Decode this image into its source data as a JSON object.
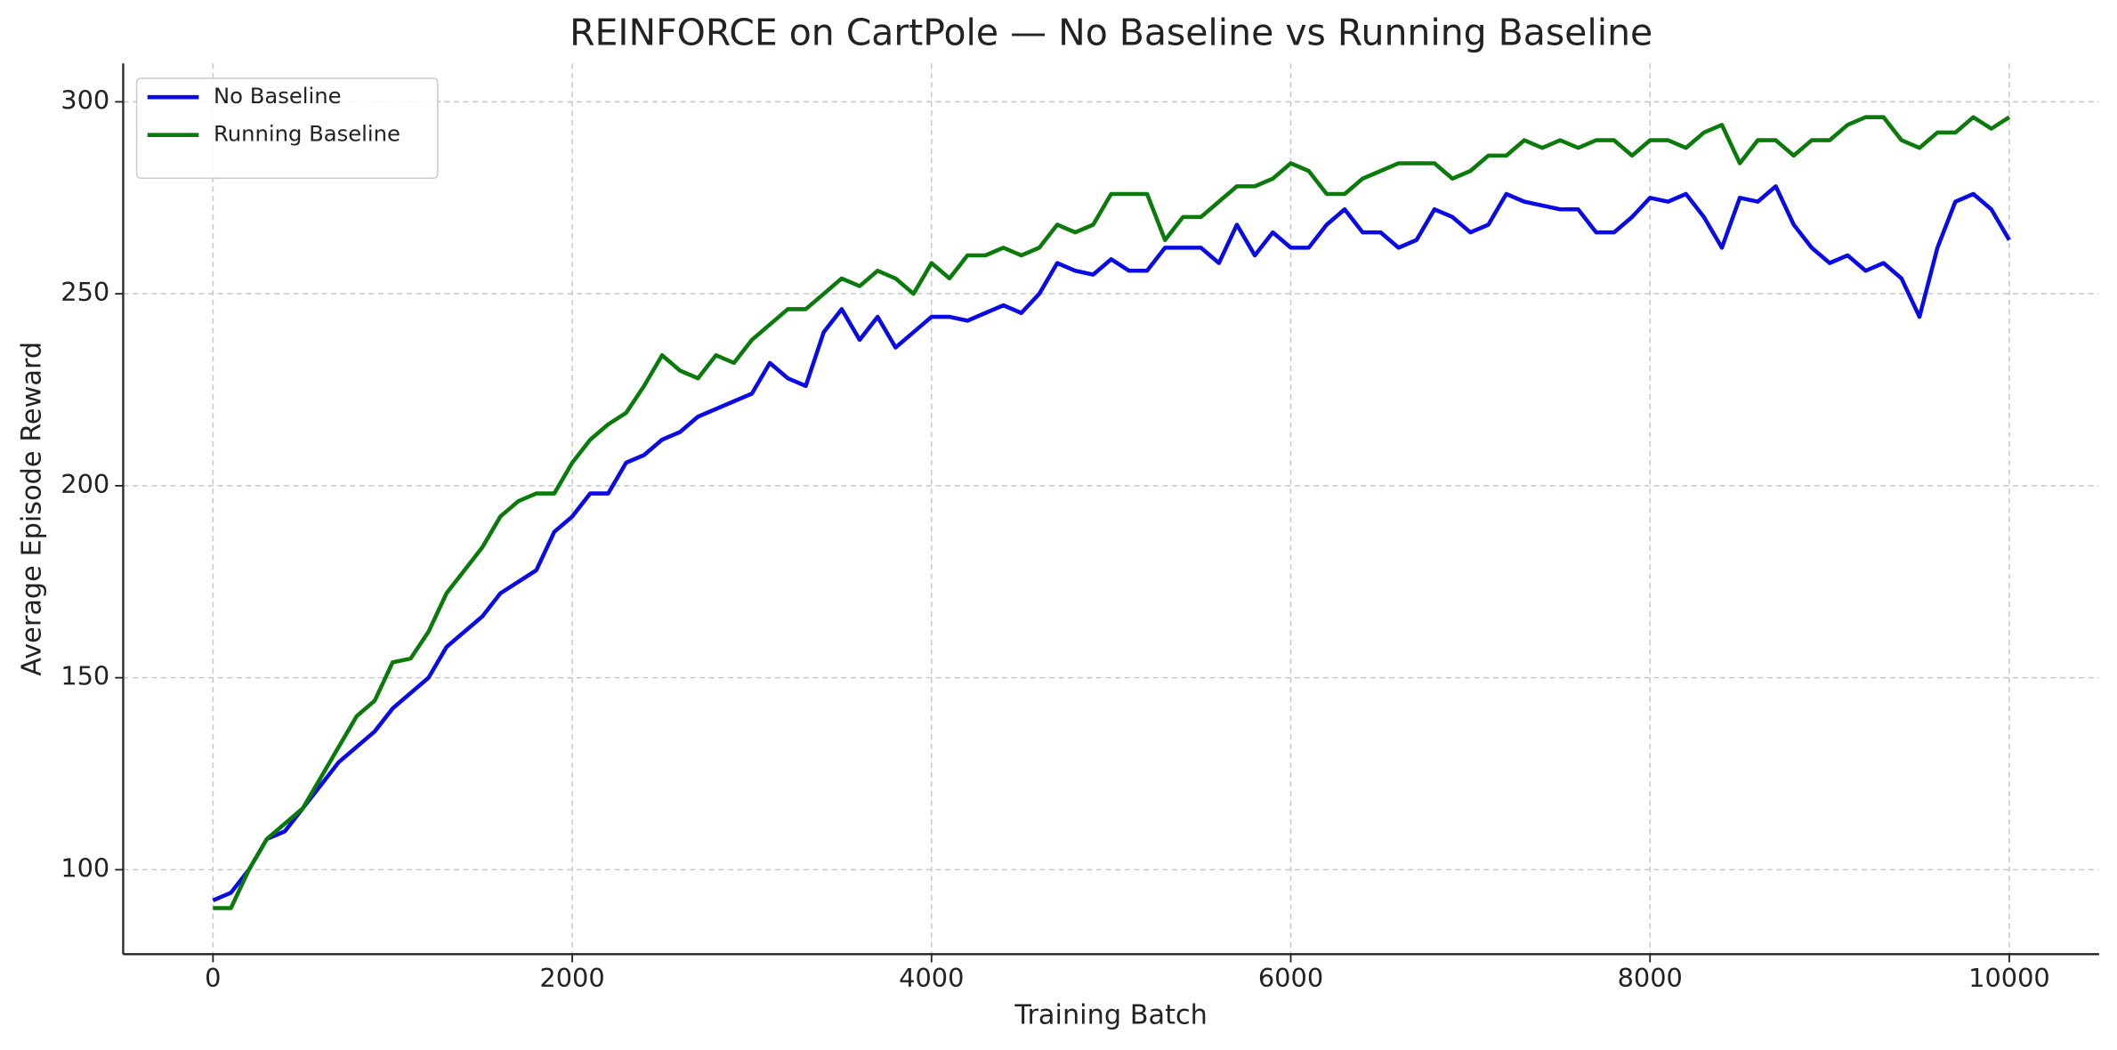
{
  "chart_data": {
    "type": "line",
    "title": "REINFORCE on CartPole — No Baseline vs Running Baseline",
    "x_label": "Training Batch",
    "y_label": "Average Episode Reward",
    "x": [
      0,
      100,
      200,
      300,
      400,
      500,
      600,
      700,
      800,
      900,
      1000,
      1100,
      1200,
      1300,
      1400,
      1500,
      1600,
      1700,
      1800,
      1900,
      2000,
      2100,
      2200,
      2300,
      2400,
      2500,
      2600,
      2700,
      2800,
      2900,
      3000,
      3100,
      3200,
      3300,
      3400,
      3500,
      3600,
      3700,
      3800,
      3900,
      4000,
      4100,
      4200,
      4300,
      4400,
      4500,
      4600,
      4700,
      4800,
      4900,
      5000,
      5100,
      5200,
      5300,
      5400,
      5500,
      5600,
      5700,
      5800,
      5900,
      6000,
      6100,
      6200,
      6300,
      6400,
      6500,
      6600,
      6700,
      6800,
      6900,
      7000,
      7100,
      7200,
      7300,
      7400,
      7500,
      7600,
      7700,
      7800,
      7900,
      8000,
      8100,
      8200,
      8300,
      8400,
      8500,
      8600,
      8700,
      8800,
      8900,
      9000,
      9100,
      9200,
      9300,
      9400,
      9500,
      9600,
      9700,
      9800,
      9900,
      10000
    ],
    "series": [
      {
        "name": "No Baseline",
        "color": "#0a0ae6",
        "values": [
          92,
          94,
          100,
          108,
          110,
          116,
          122,
          128,
          132,
          136,
          142,
          146,
          150,
          158,
          162,
          166,
          172,
          175,
          178,
          188,
          192,
          198,
          198,
          206,
          208,
          212,
          214,
          218,
          220,
          222,
          224,
          232,
          228,
          226,
          240,
          246,
          238,
          244,
          236,
          240,
          244,
          244,
          243,
          245,
          247,
          245,
          250,
          258,
          256,
          255,
          259,
          256,
          256,
          262,
          262,
          262,
          258,
          268,
          260,
          266,
          262,
          262,
          268,
          272,
          266,
          266,
          262,
          264,
          272,
          270,
          266,
          268,
          276,
          274,
          273,
          272,
          272,
          266,
          266,
          270,
          275,
          274,
          276,
          270,
          262,
          275,
          274,
          278,
          268,
          262,
          258,
          260,
          256,
          258,
          254,
          244,
          262,
          274,
          276,
          272,
          264
        ]
      },
      {
        "name": "Running Baseline",
        "color": "#0a7a0a",
        "values": [
          90,
          90,
          100,
          108,
          112,
          116,
          124,
          132,
          140,
          144,
          154,
          155,
          162,
          172,
          178,
          184,
          192,
          196,
          198,
          198,
          206,
          212,
          216,
          219,
          226,
          234,
          230,
          228,
          234,
          232,
          238,
          242,
          246,
          246,
          250,
          254,
          252,
          256,
          254,
          250,
          258,
          254,
          260,
          260,
          262,
          260,
          262,
          268,
          266,
          268,
          276,
          276,
          276,
          264,
          270,
          270,
          274,
          278,
          278,
          280,
          284,
          282,
          276,
          276,
          280,
          282,
          284,
          284,
          284,
          280,
          282,
          286,
          286,
          290,
          288,
          290,
          288,
          290,
          290,
          286,
          290,
          290,
          288,
          292,
          294,
          284,
          290,
          290,
          286,
          290,
          290,
          294,
          296,
          296,
          290,
          288,
          292,
          292,
          296,
          293,
          296
        ]
      }
    ],
    "xlim": [
      -500,
      10500
    ],
    "ylim": [
      78,
      310
    ],
    "xticks": [
      0,
      2000,
      4000,
      6000,
      8000,
      10000
    ],
    "yticks": [
      100,
      150,
      200,
      250,
      300
    ],
    "grid": true,
    "legend": "upper left"
  }
}
